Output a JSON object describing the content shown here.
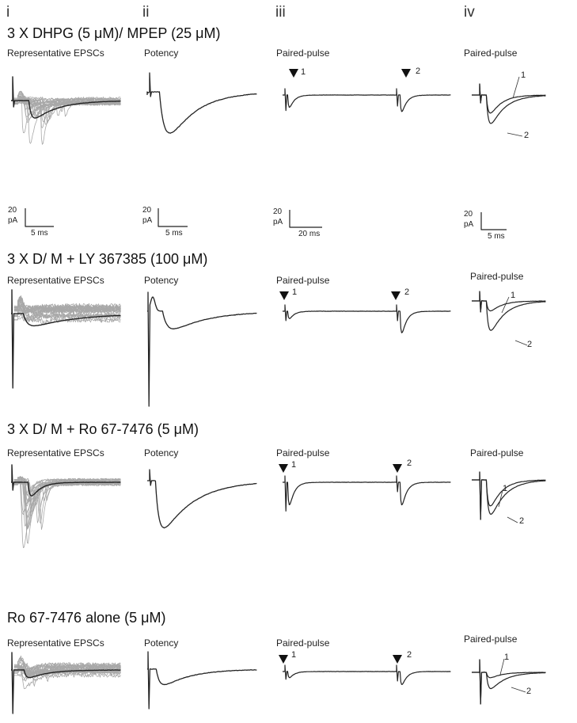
{
  "columns": [
    "i",
    "ii",
    "iii",
    "iv"
  ],
  "rows": [
    {
      "condition": "3 X DHPG (5 μM)/ MPEP (25 μM)",
      "panels": [
        "Representative EPSCs",
        "Potency",
        "Paired-pulse",
        "Paired-pulse"
      ]
    },
    {
      "condition": "3 X D/ M + LY 367385 (100 μM)",
      "panels": [
        "Representative EPSCs",
        "Potency",
        "Paired-pulse",
        "Paired-pulse"
      ]
    },
    {
      "condition": "3 X D/ M + Ro 67-7476 (5 μM)",
      "panels": [
        "Representative EPSCs",
        "Potency",
        "Paired-pulse",
        "Paired-pulse"
      ]
    },
    {
      "condition": "Ro 67-7476 alone (5 μM)",
      "panels": [
        "Representative EPSCs",
        "Potency",
        "Paired-pulse",
        "Paired-pulse"
      ]
    }
  ],
  "scalebars": [
    {
      "y": "20",
      "yunit": "pA",
      "x": "5 ms"
    },
    {
      "y": "20",
      "yunit": "pA",
      "x": "5 ms"
    },
    {
      "y": "20",
      "yunit": "pA",
      "x": "20 ms"
    },
    {
      "y": "20",
      "yunit": "pA",
      "x": "5 ms"
    }
  ],
  "pulse_labels": [
    "1",
    "2"
  ],
  "colors": {
    "trace": "#222222",
    "overlay": "#a8a8a8"
  }
}
